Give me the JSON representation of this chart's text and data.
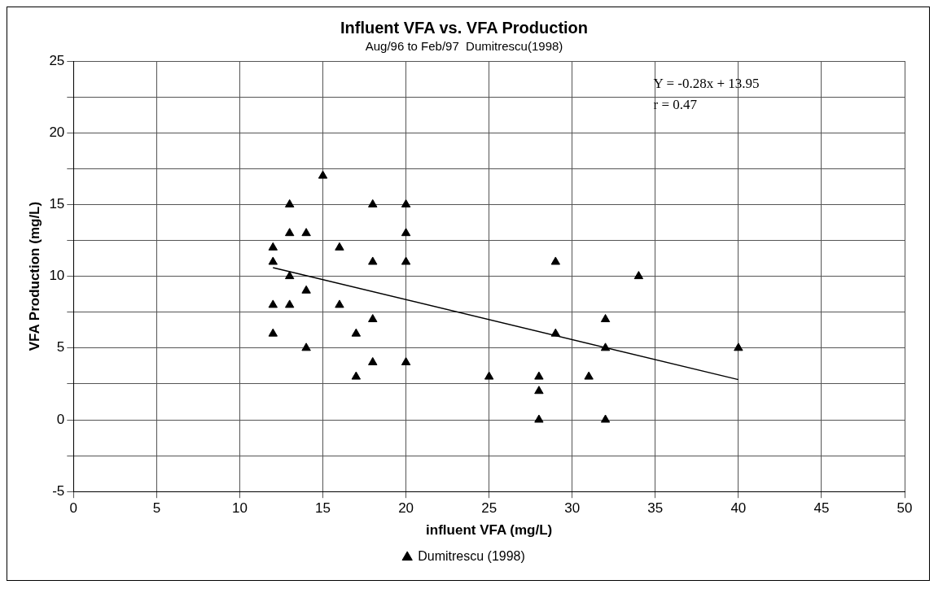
{
  "chart_data": {
    "type": "scatter",
    "title": "Influent VFA vs. VFA Production",
    "subtitle": "Aug/96 to Feb/97  Dumitrescu(1998)",
    "xlabel": "influent VFA (mg/L)",
    "ylabel": "VFA Production (mg/L)",
    "xlim": [
      0,
      50
    ],
    "xticks": [
      0,
      5,
      10,
      15,
      20,
      25,
      30,
      35,
      40,
      45,
      50
    ],
    "ylim": [
      -5,
      25
    ],
    "yticks": [
      -5,
      {
        "value": -2.5,
        "label": null
      },
      0,
      {
        "value": 2.5,
        "label": null
      },
      5,
      {
        "value": 7.5,
        "label": null
      },
      10,
      {
        "value": 12.5,
        "label": null
      },
      15,
      {
        "value": 17.5,
        "label": null
      },
      20,
      {
        "value": 22.5,
        "label": null
      },
      25
    ],
    "grid": true,
    "legend": "bottom",
    "annotations": [
      "Y = -0.28x + 13.95\nr = 0.47"
    ],
    "series": [
      {
        "name": "Dumitrescu (1998)",
        "color": "#000000",
        "marker": "triangle",
        "x": [
          12,
          12,
          12,
          12,
          13,
          13,
          13,
          13,
          14,
          14,
          14,
          15,
          16,
          16,
          17,
          17,
          18,
          18,
          18,
          18,
          20,
          20,
          20,
          20,
          25,
          28,
          28,
          28,
          29,
          29,
          31,
          32,
          32,
          32,
          34,
          40
        ],
        "values": [
          12,
          11,
          8,
          6,
          15,
          13,
          10,
          8,
          13,
          9,
          5,
          17,
          12,
          8,
          6,
          3,
          15,
          11,
          7,
          4,
          15,
          13,
          11,
          4,
          3,
          3,
          2,
          0,
          11,
          6,
          3,
          7,
          5,
          0,
          10,
          5
        ]
      },
      {
        "color": "#000000",
        "type": "line",
        "marker": "none",
        "x": [
          12,
          40
        ],
        "values": [
          10.6,
          2.8
        ]
      }
    ]
  }
}
